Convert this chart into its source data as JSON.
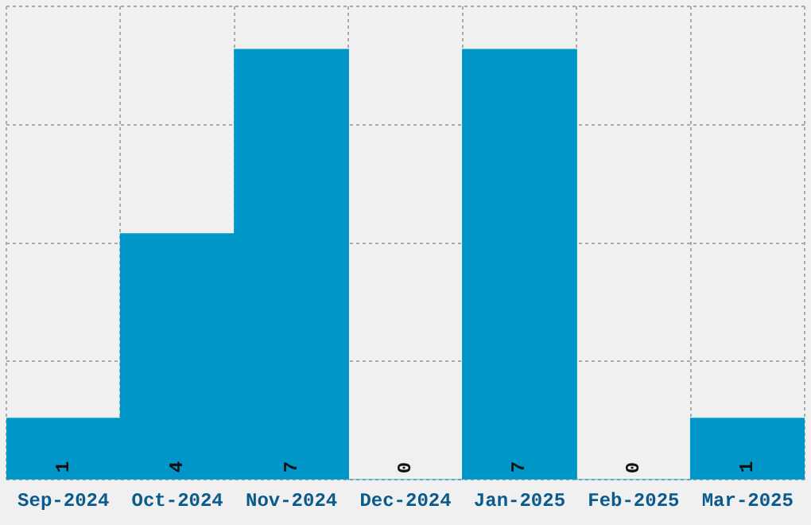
{
  "chart_data": {
    "type": "bar",
    "categories": [
      "Sep-2024",
      "Oct-2024",
      "Nov-2024",
      "Dec-2024",
      "Jan-2025",
      "Feb-2025",
      "Mar-2025"
    ],
    "values": [
      1,
      4,
      7,
      0,
      7,
      0,
      1
    ],
    "color": "#0096c8",
    "ylim": [
      0,
      7.7
    ],
    "yticks": [
      {
        "value": 0,
        "label": null
      },
      {
        "value": 1.925,
        "label": null
      },
      {
        "value": 3.85,
        "label": null
      },
      {
        "value": 5.775,
        "label": null
      },
      {
        "value": 7.7,
        "label": null
      }
    ],
    "tick_labels": "x",
    "grid": true,
    "data_labels": true
  }
}
